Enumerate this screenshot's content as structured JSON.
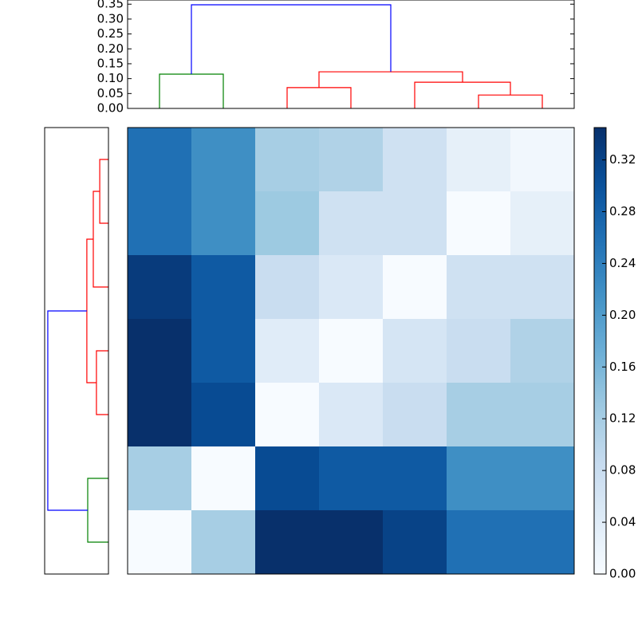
{
  "chart_data": [
    {
      "type": "dendrogram",
      "orientation": "top",
      "xlim": [
        0,
        70
      ],
      "ylim": [
        0,
        0.364
      ],
      "yticks": [
        {
          "value": 0,
          "label": "0.00"
        },
        {
          "value": 0.05,
          "label": "0.05"
        },
        {
          "value": 0.1,
          "label": "0.10"
        },
        {
          "value": 0.15,
          "label": "0.15"
        },
        {
          "value": 0.2,
          "label": "0.20"
        },
        {
          "value": 0.25,
          "label": "0.25"
        },
        {
          "value": 0.3,
          "label": "0.30"
        },
        {
          "value": 0.35,
          "label": "0.35"
        }
      ],
      "links": [
        {
          "color": "#008000",
          "x": [
            5,
            5,
            15,
            15
          ],
          "y": [
            0,
            0.115,
            0.115,
            0
          ]
        },
        {
          "color": "#ff0000",
          "x": [
            25,
            25,
            35,
            35
          ],
          "y": [
            0,
            0.07,
            0.07,
            0
          ]
        },
        {
          "color": "#ff0000",
          "x": [
            55,
            55,
            65,
            65
          ],
          "y": [
            0,
            0.045,
            0.045,
            0
          ]
        },
        {
          "color": "#ff0000",
          "x": [
            45,
            45,
            60,
            60
          ],
          "y": [
            0,
            0.088,
            0.088,
            0.045
          ]
        },
        {
          "color": "#ff0000",
          "x": [
            30,
            30,
            52.5,
            52.5
          ],
          "y": [
            0.07,
            0.123,
            0.123,
            0.088
          ]
        },
        {
          "color": "#0000ff",
          "x": [
            10,
            10,
            41.25,
            41.25
          ],
          "y": [
            0.115,
            0.348,
            0.348,
            0.123
          ]
        }
      ]
    },
    {
      "type": "dendrogram",
      "orientation": "left",
      "xlim": [
        0.366,
        0
      ],
      "ylim": [
        70,
        0
      ],
      "links": [
        {
          "color": "#ff0000",
          "y": [
            5,
            5,
            15,
            15
          ],
          "x": [
            0,
            0.05,
            0.05,
            0
          ]
        },
        {
          "color": "#ff0000",
          "y": [
            35,
            35,
            45,
            45
          ],
          "x": [
            0,
            0.069,
            0.069,
            0
          ]
        },
        {
          "color": "#ff0000",
          "y": [
            10,
            10,
            25,
            25
          ],
          "x": [
            0.05,
            0.087,
            0.087,
            0
          ]
        },
        {
          "color": "#ff0000",
          "y": [
            17.5,
            17.5,
            40,
            40
          ],
          "x": [
            0.087,
            0.124,
            0.124,
            0.069
          ]
        },
        {
          "color": "#008000",
          "y": [
            55,
            55,
            65,
            65
          ],
          "x": [
            0,
            0.119,
            0.119,
            0
          ]
        },
        {
          "color": "#0000ff",
          "y": [
            28.75,
            28.75,
            60,
            60
          ],
          "x": [
            0.124,
            0.348,
            0.348,
            0.119
          ]
        }
      ]
    },
    {
      "type": "heatmap",
      "colormap": "Blues",
      "zlim": [
        0,
        0.345
      ],
      "z": [
        [
          0.26,
          0.22,
          0.12,
          0.11,
          0.07,
          0.03,
          0.01
        ],
        [
          0.26,
          0.22,
          0.13,
          0.07,
          0.07,
          0.0,
          0.03
        ],
        [
          0.33,
          0.29,
          0.08,
          0.05,
          0.0,
          0.07,
          0.07
        ],
        [
          0.345,
          0.29,
          0.04,
          0.0,
          0.06,
          0.08,
          0.11
        ],
        [
          0.345,
          0.31,
          0.0,
          0.05,
          0.08,
          0.12,
          0.12
        ],
        [
          0.12,
          0.0,
          0.31,
          0.29,
          0.29,
          0.22,
          0.22
        ],
        [
          0.0,
          0.12,
          0.345,
          0.345,
          0.32,
          0.26,
          0.26
        ]
      ],
      "zticks": [
        {
          "value": 0,
          "label": "0.00"
        },
        {
          "value": 0.04,
          "label": "0.04"
        },
        {
          "value": 0.08,
          "label": "0.08"
        },
        {
          "value": 0.12,
          "label": "0.12"
        },
        {
          "value": 0.16,
          "label": "0.16"
        },
        {
          "value": 0.2,
          "label": "0.20"
        },
        {
          "value": 0.24,
          "label": "0.24"
        },
        {
          "value": 0.28,
          "label": "0.28"
        },
        {
          "value": 0.32,
          "label": "0.32"
        }
      ]
    }
  ]
}
